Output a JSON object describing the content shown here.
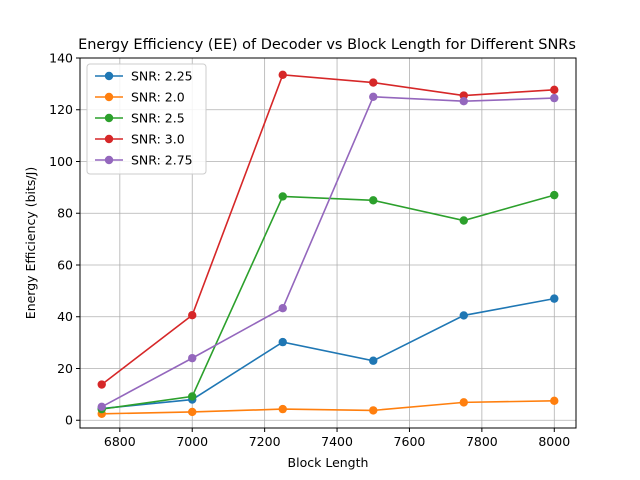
{
  "chart_data": {
    "type": "line",
    "title": "Energy Efficiency (EE) of Decoder vs Block Length for Different SNRs",
    "xlabel": "Block Length",
    "ylabel": "Energy Efficiency (bits/J)",
    "xlim": [
      6690,
      8060
    ],
    "ylim": [
      -3,
      140
    ],
    "xticks": [
      6800,
      7000,
      7200,
      7400,
      7600,
      7800,
      8000
    ],
    "yticks": [
      0,
      20,
      40,
      60,
      80,
      100,
      120,
      140
    ],
    "grid": true,
    "legend_position": "top-left",
    "x": [
      6750,
      7000,
      7250,
      7500,
      7750,
      8000
    ],
    "series": [
      {
        "name": "SNR: 2.25",
        "color": "#1f77b4",
        "values": [
          4.5,
          8.0,
          30.2,
          23.0,
          40.5,
          47.0
        ]
      },
      {
        "name": "SNR: 2.0",
        "color": "#ff7f0e",
        "values": [
          2.5,
          3.2,
          4.3,
          3.8,
          6.9,
          7.5
        ]
      },
      {
        "name": "SNR: 2.5",
        "color": "#2ca02c",
        "values": [
          4.3,
          9.2,
          86.5,
          85.0,
          77.2,
          87.0
        ]
      },
      {
        "name": "SNR: 3.0",
        "color": "#d62728",
        "values": [
          13.8,
          40.6,
          133.5,
          130.5,
          125.5,
          127.7
        ]
      },
      {
        "name": "SNR: 2.75",
        "color": "#9467bd",
        "values": [
          5.2,
          24.0,
          43.3,
          125.0,
          123.3,
          124.5
        ]
      }
    ]
  }
}
